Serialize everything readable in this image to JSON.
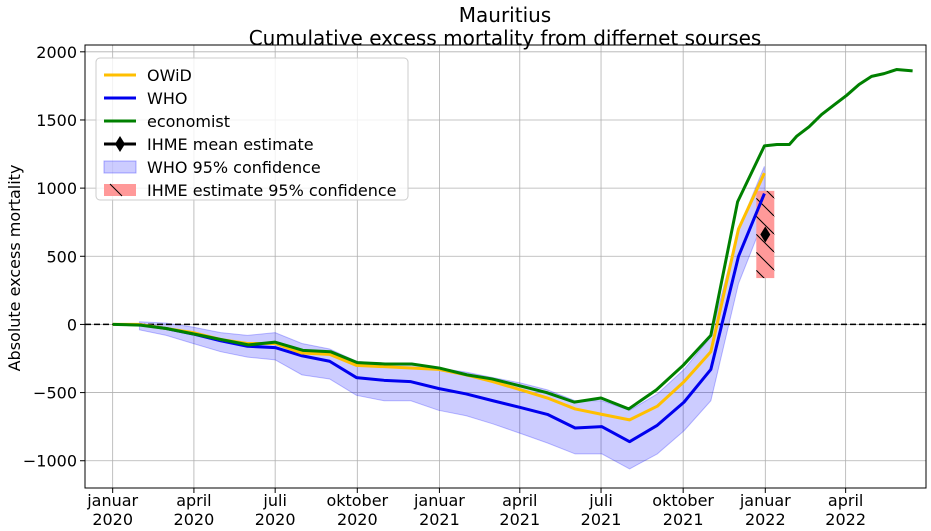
{
  "chart_data": {
    "type": "line",
    "title": "Mauritius",
    "subtitle": "Cumulative excess mortality from differnet sourses",
    "xlabel": "",
    "ylabel": "Absolute excess mortality",
    "ylim": [
      -1200,
      2050
    ],
    "xlim": [
      "2019-12-01",
      "2022-06-30"
    ],
    "grid": true,
    "legend_position": "top-left",
    "y_ticks": [
      2000,
      1500,
      1000,
      500,
      0,
      -500,
      -1000
    ],
    "y_tick_labels": [
      "2000",
      "1500",
      "1000",
      "500",
      "0",
      "−500",
      "−1000"
    ],
    "x_ticks": [
      {
        "date": "2020-01-01",
        "month": "januar",
        "year": "2020"
      },
      {
        "date": "2020-04-01",
        "month": "april",
        "year": "2020"
      },
      {
        "date": "2020-07-01",
        "month": "juli",
        "year": "2020"
      },
      {
        "date": "2020-10-01",
        "month": "oktober",
        "year": "2020"
      },
      {
        "date": "2021-01-01",
        "month": "januar",
        "year": "2021"
      },
      {
        "date": "2021-04-01",
        "month": "april",
        "year": "2021"
      },
      {
        "date": "2021-07-01",
        "month": "juli",
        "year": "2021"
      },
      {
        "date": "2021-10-01",
        "month": "oktober",
        "year": "2021"
      },
      {
        "date": "2022-01-01",
        "month": "januar",
        "year": "2022"
      },
      {
        "date": "2022-04-01",
        "month": "april",
        "year": "2022"
      }
    ],
    "series": [
      {
        "name": "OWiD",
        "color": "#ffbf00",
        "points": [
          [
            "2020-01-01",
            0
          ],
          [
            "2020-01-31",
            0
          ],
          [
            "2020-03-01",
            -30
          ],
          [
            "2020-03-31",
            -60
          ],
          [
            "2020-05-01",
            -110
          ],
          [
            "2020-05-31",
            -140
          ],
          [
            "2020-07-01",
            -140
          ],
          [
            "2020-07-31",
            -210
          ],
          [
            "2020-08-31",
            -220
          ],
          [
            "2020-09-30",
            -300
          ],
          [
            "2020-10-31",
            -310
          ],
          [
            "2020-11-30",
            -320
          ],
          [
            "2020-12-31",
            -330
          ],
          [
            "2021-01-31",
            -370
          ],
          [
            "2021-03-02",
            -420
          ],
          [
            "2021-04-02",
            -480
          ],
          [
            "2021-05-02",
            -540
          ],
          [
            "2021-06-02",
            -620
          ],
          [
            "2021-07-02",
            -660
          ],
          [
            "2021-08-02",
            -700
          ],
          [
            "2021-09-02",
            -600
          ],
          [
            "2021-10-02",
            -420
          ],
          [
            "2021-11-01",
            -200
          ],
          [
            "2021-12-02",
            700
          ],
          [
            "2021-12-31",
            1110
          ]
        ]
      },
      {
        "name": "WHO",
        "color": "#0000ee",
        "points": [
          [
            "2020-01-31",
            0
          ],
          [
            "2020-03-01",
            -30
          ],
          [
            "2020-03-31",
            -70
          ],
          [
            "2020-05-01",
            -120
          ],
          [
            "2020-05-31",
            -160
          ],
          [
            "2020-07-01",
            -170
          ],
          [
            "2020-07-31",
            -230
          ],
          [
            "2020-08-31",
            -270
          ],
          [
            "2020-09-30",
            -390
          ],
          [
            "2020-10-31",
            -410
          ],
          [
            "2020-11-30",
            -420
          ],
          [
            "2020-12-31",
            -470
          ],
          [
            "2021-01-31",
            -510
          ],
          [
            "2021-03-02",
            -560
          ],
          [
            "2021-04-02",
            -610
          ],
          [
            "2021-05-02",
            -660
          ],
          [
            "2021-06-02",
            -760
          ],
          [
            "2021-07-02",
            -750
          ],
          [
            "2021-08-02",
            -860
          ],
          [
            "2021-09-02",
            -740
          ],
          [
            "2021-10-02",
            -570
          ],
          [
            "2021-11-01",
            -330
          ],
          [
            "2021-12-02",
            500
          ],
          [
            "2021-12-31",
            960
          ]
        ]
      },
      {
        "name": "economist",
        "color": "#008000",
        "points": [
          [
            "2020-01-01",
            0
          ],
          [
            "2020-02-01",
            -5
          ],
          [
            "2020-03-01",
            -30
          ],
          [
            "2020-04-01",
            -70
          ],
          [
            "2020-05-01",
            -110
          ],
          [
            "2020-06-01",
            -150
          ],
          [
            "2020-07-01",
            -130
          ],
          [
            "2020-08-01",
            -190
          ],
          [
            "2020-09-01",
            -200
          ],
          [
            "2020-10-01",
            -280
          ],
          [
            "2020-11-01",
            -290
          ],
          [
            "2020-12-01",
            -290
          ],
          [
            "2021-01-01",
            -320
          ],
          [
            "2021-02-01",
            -370
          ],
          [
            "2021-03-01",
            -400
          ],
          [
            "2021-04-01",
            -450
          ],
          [
            "2021-05-01",
            -500
          ],
          [
            "2021-06-01",
            -570
          ],
          [
            "2021-07-01",
            -540
          ],
          [
            "2021-08-01",
            -620
          ],
          [
            "2021-09-01",
            -480
          ],
          [
            "2021-10-01",
            -300
          ],
          [
            "2021-11-01",
            -80
          ],
          [
            "2021-12-01",
            900
          ],
          [
            "2021-12-31",
            1310
          ],
          [
            "2022-01-14",
            1320
          ],
          [
            "2022-01-28",
            1320
          ],
          [
            "2022-02-05",
            1380
          ],
          [
            "2022-02-19",
            1450
          ],
          [
            "2022-03-05",
            1540
          ],
          [
            "2022-03-19",
            1610
          ],
          [
            "2022-04-02",
            1680
          ],
          [
            "2022-04-16",
            1760
          ],
          [
            "2022-04-30",
            1820
          ],
          [
            "2022-05-14",
            1840
          ],
          [
            "2022-05-28",
            1870
          ],
          [
            "2022-06-15",
            1860
          ]
        ]
      }
    ],
    "who_confidence": {
      "name": "WHO 95% confidence",
      "color": "#0000ff",
      "opacity": 0.2,
      "points": [
        [
          "2020-01-31",
          20,
          -40
        ],
        [
          "2020-03-01",
          10,
          -80
        ],
        [
          "2020-03-31",
          -20,
          -140
        ],
        [
          "2020-05-01",
          -60,
          -200
        ],
        [
          "2020-05-31",
          -80,
          -240
        ],
        [
          "2020-07-01",
          -60,
          -260
        ],
        [
          "2020-07-31",
          -140,
          -370
        ],
        [
          "2020-08-31",
          -180,
          -400
        ],
        [
          "2020-09-30",
          -270,
          -520
        ],
        [
          "2020-10-31",
          -290,
          -560
        ],
        [
          "2020-11-30",
          -290,
          -560
        ],
        [
          "2020-12-31",
          -320,
          -630
        ],
        [
          "2021-01-31",
          -350,
          -670
        ],
        [
          "2021-03-02",
          -390,
          -730
        ],
        [
          "2021-04-02",
          -430,
          -800
        ],
        [
          "2021-05-02",
          -480,
          -870
        ],
        [
          "2021-06-02",
          -560,
          -950
        ],
        [
          "2021-07-02",
          -560,
          -950
        ],
        [
          "2021-08-02",
          -630,
          -1060
        ],
        [
          "2021-09-02",
          -510,
          -950
        ],
        [
          "2021-10-02",
          -330,
          -780
        ],
        [
          "2021-11-01",
          -90,
          -560
        ],
        [
          "2021-12-02",
          700,
          300
        ],
        [
          "2021-12-31",
          1160,
          780
        ]
      ]
    },
    "ihme": {
      "mean_label": "IHME mean estimate",
      "ci_label": " IHME estimate 95% confidence",
      "date": "2022-01-01",
      "mean": 660,
      "ci": [
        340,
        980
      ],
      "color": "#ff9999"
    },
    "reference_line": {
      "y": 0,
      "style": "dashed",
      "color": "#000000"
    }
  }
}
